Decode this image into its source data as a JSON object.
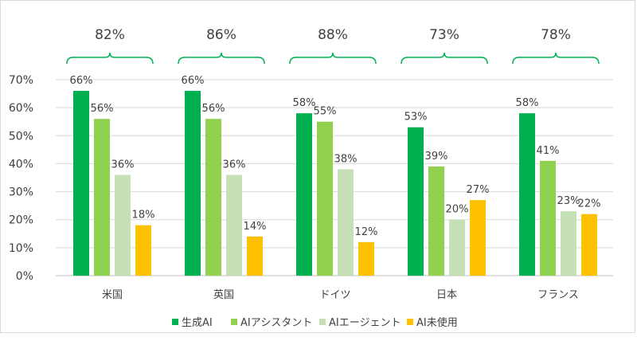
{
  "chart_data": {
    "type": "bar",
    "categories": [
      "米国",
      "英国",
      "ドイツ",
      "日本",
      "フランス"
    ],
    "series": [
      {
        "name": "生成AI",
        "color": "#00B050",
        "values": [
          66,
          66,
          58,
          53,
          58
        ]
      },
      {
        "name": "AIアシスタント",
        "color": "#92D050",
        "values": [
          56,
          56,
          55,
          39,
          41
        ]
      },
      {
        "name": "AIエージェント",
        "color": "#C5E0B4",
        "values": [
          36,
          36,
          38,
          20,
          23
        ]
      },
      {
        "name": "AI未使用",
        "color": "#FFC000",
        "values": [
          18,
          14,
          12,
          27,
          22
        ]
      }
    ],
    "group_totals": [
      "82%",
      "86%",
      "88%",
      "73%",
      "78%"
    ],
    "brace_color": "#00B050",
    "yticks": [
      "0%",
      "10%",
      "20%",
      "30%",
      "40%",
      "50%",
      "60%",
      "70%"
    ],
    "ylim": [
      0,
      70
    ],
    "grid": true,
    "legend_position": "bottom",
    "value_suffix": "%"
  }
}
